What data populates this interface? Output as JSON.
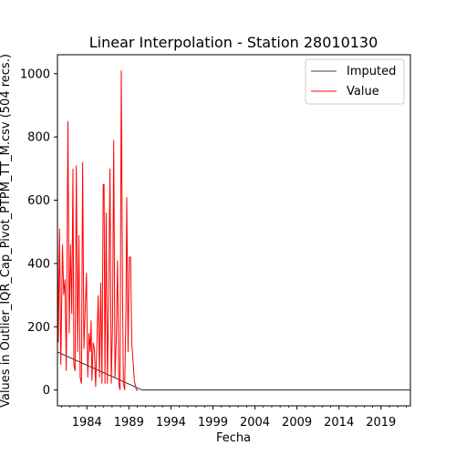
{
  "chart_data": {
    "type": "line",
    "title": "Linear Interpolation - Station 28010130",
    "xlabel": "Fecha",
    "ylabel": "Values in Outlier_IQR_Cap_Pivot_PTPM_TT_M.csv (504 recs.)",
    "xlim": [
      1980.5,
      2022.5
    ],
    "ylim": [
      -50,
      1060
    ],
    "x_ticks": [
      1984,
      1989,
      1994,
      1999,
      2004,
      2009,
      2014,
      2019
    ],
    "y_ticks": [
      0,
      200,
      400,
      600,
      800,
      1000
    ],
    "x_tick_labels": [
      "1984",
      "1989",
      "1994",
      "1999",
      "2004",
      "2009",
      "2014",
      "2019"
    ],
    "y_tick_labels": [
      "0",
      "200",
      "400",
      "600",
      "800",
      "1000"
    ],
    "grid": false,
    "legend_position": "top-right",
    "legend": [
      "Imputed",
      "Value"
    ],
    "colors": {
      "Imputed": "#000000",
      "Value": "#ff0000"
    },
    "series": [
      {
        "name": "Imputed",
        "points": [
          [
            1980.5,
            120
          ],
          [
            1990.6,
            0
          ],
          [
            2022.5,
            0
          ]
        ]
      },
      {
        "name": "Value",
        "points": [
          [
            1980.5,
            520
          ],
          [
            1980.6,
            150
          ],
          [
            1980.75,
            510
          ],
          [
            1980.9,
            80
          ],
          [
            1981.1,
            460
          ],
          [
            1981.25,
            300
          ],
          [
            1981.4,
            350
          ],
          [
            1981.55,
            60
          ],
          [
            1981.75,
            850
          ],
          [
            1981.9,
            180
          ],
          [
            1982.05,
            460
          ],
          [
            1982.2,
            240
          ],
          [
            1982.35,
            700
          ],
          [
            1982.45,
            80
          ],
          [
            1982.6,
            60
          ],
          [
            1982.75,
            710
          ],
          [
            1982.9,
            120
          ],
          [
            1983.05,
            490
          ],
          [
            1983.2,
            40
          ],
          [
            1983.35,
            20
          ],
          [
            1983.5,
            720
          ],
          [
            1983.65,
            130
          ],
          [
            1983.8,
            250
          ],
          [
            1983.95,
            370
          ],
          [
            1984.1,
            40
          ],
          [
            1984.25,
            180
          ],
          [
            1984.4,
            120
          ],
          [
            1984.5,
            220
          ],
          [
            1984.6,
            30
          ],
          [
            1984.75,
            150
          ],
          [
            1984.9,
            130
          ],
          [
            1985.05,
            10
          ],
          [
            1985.2,
            150
          ],
          [
            1985.35,
            300
          ],
          [
            1985.5,
            40
          ],
          [
            1985.65,
            340
          ],
          [
            1985.8,
            20
          ],
          [
            1985.95,
            650
          ],
          [
            1986.05,
            650
          ],
          [
            1986.15,
            20
          ],
          [
            1986.3,
            560
          ],
          [
            1986.45,
            20
          ],
          [
            1986.6,
            300
          ],
          [
            1986.75,
            700
          ],
          [
            1986.9,
            20
          ],
          [
            1987.05,
            210
          ],
          [
            1987.2,
            790
          ],
          [
            1987.35,
            40
          ],
          [
            1987.5,
            160
          ],
          [
            1987.65,
            410
          ],
          [
            1987.8,
            20
          ],
          [
            1987.95,
            0
          ],
          [
            1988.1,
            1010
          ],
          [
            1988.25,
            300
          ],
          [
            1988.35,
            20
          ],
          [
            1988.5,
            0
          ],
          [
            1988.65,
            260
          ],
          [
            1988.75,
            610
          ],
          [
            1988.9,
            120
          ],
          [
            1989.05,
            420
          ],
          [
            1989.2,
            420
          ],
          [
            1989.35,
            150
          ],
          [
            1989.5,
            90
          ],
          [
            1989.65,
            30
          ],
          [
            1989.9,
            0
          ],
          [
            1990.1,
            0
          ]
        ]
      }
    ]
  }
}
